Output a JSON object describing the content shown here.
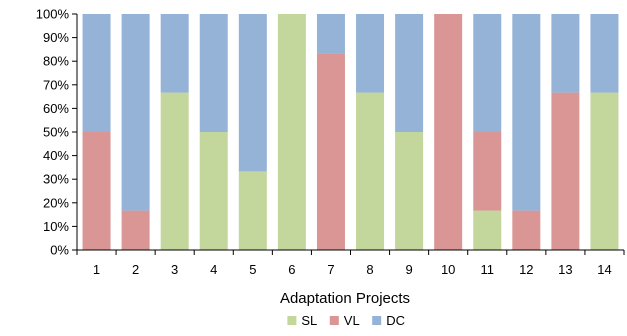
{
  "chart_data": {
    "type": "bar",
    "stacked": true,
    "normalized": true,
    "xlabel": "Adaptation Projects",
    "ylabel": "",
    "title": "",
    "ylim": [
      0,
      100
    ],
    "yticks": [
      "0%",
      "10%",
      "20%",
      "30%",
      "40%",
      "50%",
      "60%",
      "70%",
      "80%",
      "90%",
      "100%"
    ],
    "categories": [
      "1",
      "2",
      "3",
      "4",
      "5",
      "6",
      "7",
      "8",
      "9",
      "10",
      "11",
      "12",
      "13",
      "14"
    ],
    "series": [
      {
        "name": "SL",
        "color": "#c3d69b",
        "values": [
          0,
          0,
          66.7,
          50,
          33.3,
          100,
          0,
          66.7,
          50,
          0,
          16.7,
          0,
          0,
          66.7
        ]
      },
      {
        "name": "VL",
        "color": "#d99694",
        "values": [
          50,
          16.7,
          0,
          0,
          0,
          0,
          83.3,
          0,
          0,
          100,
          33.3,
          16.7,
          66.7,
          0
        ]
      },
      {
        "name": "DC",
        "color": "#95b3d7",
        "values": [
          50,
          83.3,
          33.3,
          50,
          66.7,
          0,
          16.7,
          33.3,
          50,
          0,
          50,
          83.3,
          33.3,
          33.3
        ]
      }
    ],
    "grid": false,
    "legend_position": "bottom"
  }
}
